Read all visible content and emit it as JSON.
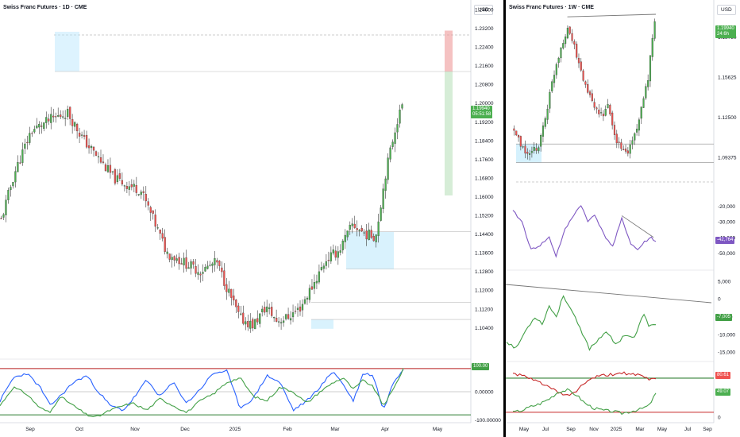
{
  "left_chart": {
    "title": "Swiss Franc Futures · 1D · CME",
    "currency": "USD",
    "price_ticks": [
      "1.24000",
      "1.23200",
      "1.22400",
      "1.21600",
      "1.20800",
      "1.20000",
      "1.19200",
      "1.18400",
      "1.17600",
      "1.16800",
      "1.16000",
      "1.15200",
      "1.14400",
      "1.13600",
      "1.12800",
      "1.12000",
      "1.11200",
      "1.10400"
    ],
    "last_price": "1.19940",
    "countdown": "05:51:58",
    "indicator_ticks": [
      "100.00000",
      "0.00000",
      "-100.00000"
    ],
    "indicator_tag": "100.00",
    "time_labels": [
      "Sep",
      "Oct",
      "Nov",
      "Dec",
      "2025",
      "Feb",
      "Mar",
      "Apr",
      "May"
    ]
  },
  "right_chart": {
    "title": "Swiss Franc Futures · 1W · CME",
    "currency": "USD",
    "price_ticks": [
      "1.18750",
      "1.15625",
      "1.12500",
      "1.09375"
    ],
    "last_price": "1.19940",
    "countdown": "24:6h",
    "osc1_ticks": [
      "-20,000",
      "-30,000",
      "-40,000",
      "-50,000"
    ],
    "osc1_tag": "-42,764",
    "osc2_ticks": [
      "5,000",
      "0",
      "-5,000",
      "-10,000",
      "-15,000"
    ],
    "osc2_tag": "-7,005",
    "osc3_tag_red": "80.61",
    "osc3_tag_green": "49.07",
    "osc3_tick": "0",
    "time_labels": [
      "May",
      "Jul",
      "Sep",
      "Nov",
      "2025",
      "Mar",
      "May",
      "Jul",
      "Sep"
    ]
  },
  "colors": {
    "up": "#4caf50",
    "down": "#ef5350",
    "blue": "#2962ff",
    "green_line": "#43a047",
    "red_line": "#b71c1c",
    "purple": "#7e57c2",
    "zone": "#b3e5fc",
    "grid": "#d1d4dc"
  },
  "chart_data": [
    {
      "type": "candlestick",
      "title": "Swiss Franc Futures · 1D · CME",
      "timeframe": "1D",
      "ylim": [
        1.098,
        1.24
      ],
      "x_labels": [
        "Sep",
        "Oct",
        "Nov",
        "Dec",
        "2025",
        "Feb",
        "Mar",
        "Apr",
        "May"
      ],
      "path_anchors": [
        [
          0,
          1.15
        ],
        [
          8,
          1.17
        ],
        [
          18,
          1.188
        ],
        [
          30,
          1.193
        ],
        [
          40,
          1.196
        ],
        [
          50,
          1.184
        ],
        [
          58,
          1.177
        ],
        [
          68,
          1.168
        ],
        [
          76,
          1.165
        ],
        [
          84,
          1.163
        ],
        [
          92,
          1.15
        ],
        [
          100,
          1.136
        ],
        [
          110,
          1.132
        ],
        [
          120,
          1.128
        ],
        [
          130,
          1.132
        ],
        [
          138,
          1.118
        ],
        [
          144,
          1.108
        ],
        [
          152,
          1.105
        ],
        [
          160,
          1.113
        ],
        [
          166,
          1.107
        ],
        [
          172,
          1.108
        ],
        [
          180,
          1.112
        ],
        [
          188,
          1.122
        ],
        [
          196,
          1.133
        ],
        [
          204,
          1.137
        ],
        [
          212,
          1.148
        ],
        [
          220,
          1.144
        ],
        [
          226,
          1.143
        ],
        [
          232,
          1.17
        ],
        [
          238,
          1.19
        ],
        [
          242,
          1.199
        ]
      ],
      "last_price": 1.1994,
      "zones": [
        {
          "kind": "blue",
          "price_top": 1.2305,
          "price_bottom": 1.2135
        },
        {
          "kind": "red",
          "price_top": 1.231,
          "price_bottom": 1.2135
        },
        {
          "kind": "green",
          "price_top": 1.2135,
          "price_bottom": 1.1605
        },
        {
          "kind": "blue",
          "price_top": 1.145,
          "price_bottom": 1.129
        }
      ],
      "indicator": {
        "ylim": [
          -120,
          120
        ],
        "levels": [
          100,
          0,
          -100
        ],
        "blue_anchors": [
          [
            0,
            -40
          ],
          [
            8,
            60
          ],
          [
            16,
            80
          ],
          [
            24,
            20
          ],
          [
            30,
            -60
          ],
          [
            36,
            -20
          ],
          [
            44,
            40
          ],
          [
            52,
            70
          ],
          [
            58,
            10
          ],
          [
            66,
            -60
          ],
          [
            74,
            -80
          ],
          [
            80,
            -30
          ],
          [
            88,
            50
          ],
          [
            96,
            -20
          ],
          [
            104,
            40
          ],
          [
            112,
            -50
          ],
          [
            120,
            10
          ],
          [
            128,
            80
          ],
          [
            136,
            90
          ],
          [
            144,
            -70
          ],
          [
            152,
            -30
          ],
          [
            160,
            70
          ],
          [
            168,
            40
          ],
          [
            176,
            -80
          ],
          [
            184,
            -40
          ],
          [
            192,
            20
          ],
          [
            200,
            90
          ],
          [
            206,
            30
          ],
          [
            212,
            -40
          ],
          [
            218,
            80
          ],
          [
            224,
            70
          ],
          [
            230,
            -80
          ],
          [
            236,
            40
          ],
          [
            242,
            100
          ]
        ],
        "green_anchors": [
          [
            0,
            -60
          ],
          [
            8,
            20
          ],
          [
            16,
            -10
          ],
          [
            24,
            -70
          ],
          [
            30,
            -90
          ],
          [
            36,
            -20
          ],
          [
            44,
            -60
          ],
          [
            52,
            -100
          ],
          [
            58,
            -110
          ],
          [
            66,
            -80
          ],
          [
            74,
            -60
          ],
          [
            80,
            -50
          ],
          [
            88,
            -80
          ],
          [
            96,
            -30
          ],
          [
            104,
            -60
          ],
          [
            112,
            -90
          ],
          [
            120,
            -40
          ],
          [
            128,
            -10
          ],
          [
            136,
            40
          ],
          [
            144,
            60
          ],
          [
            152,
            -20
          ],
          [
            160,
            -40
          ],
          [
            168,
            20
          ],
          [
            176,
            0
          ],
          [
            184,
            -50
          ],
          [
            192,
            0
          ],
          [
            200,
            40
          ],
          [
            206,
            60
          ],
          [
            212,
            10
          ],
          [
            218,
            50
          ],
          [
            224,
            20
          ],
          [
            230,
            -60
          ],
          [
            236,
            10
          ],
          [
            242,
            100
          ]
        ]
      }
    },
    {
      "type": "candlestick",
      "title": "Swiss Franc Futures · 1W · CME",
      "timeframe": "1W",
      "ylim": [
        1.08,
        1.205
      ],
      "x_labels": [
        "May",
        "Jul",
        "Sep",
        "Nov",
        "2025",
        "Mar",
        "May",
        "Jul",
        "Sep"
      ],
      "path_anchors": [
        [
          0,
          1.115
        ],
        [
          3,
          1.102
        ],
        [
          7,
          1.095
        ],
        [
          11,
          1.103
        ],
        [
          14,
          1.125
        ],
        [
          18,
          1.16
        ],
        [
          21,
          1.18
        ],
        [
          24,
          1.195
        ],
        [
          26,
          1.185
        ],
        [
          30,
          1.16
        ],
        [
          34,
          1.14
        ],
        [
          38,
          1.125
        ],
        [
          42,
          1.132
        ],
        [
          45,
          1.11
        ],
        [
          48,
          1.1
        ],
        [
          51,
          1.098
        ],
        [
          54,
          1.112
        ],
        [
          57,
          1.13
        ],
        [
          60,
          1.155
        ],
        [
          62,
          1.185
        ],
        [
          63,
          1.199
        ]
      ],
      "last_price": 1.1994,
      "levels": [
        1.104,
        1.0895
      ],
      "zones": [
        {
          "kind": "blue",
          "price_top": 1.104,
          "price_bottom": 1.0895
        }
      ],
      "resistance_line": [
        [
          24,
          1.203
        ],
        [
          63,
          1.205
        ]
      ],
      "osc1": {
        "ylim": [
          -56000,
          -14000
        ],
        "series_name": "",
        "anchors": [
          [
            0,
            -23000
          ],
          [
            4,
            -30000
          ],
          [
            8,
            -48000
          ],
          [
            12,
            -45000
          ],
          [
            16,
            -40000
          ],
          [
            19,
            -52000
          ],
          [
            23,
            -35000
          ],
          [
            27,
            -25000
          ],
          [
            30,
            -19000
          ],
          [
            33,
            -30000
          ],
          [
            36,
            -25000
          ],
          [
            40,
            -38000
          ],
          [
            44,
            -46000
          ],
          [
            48,
            -28000
          ],
          [
            52,
            -44000
          ],
          [
            55,
            -48000
          ],
          [
            58,
            -43000
          ],
          [
            61,
            -40000
          ],
          [
            63,
            -42764
          ]
        ],
        "trend_line": [
          [
            48,
            -26000
          ],
          [
            62,
            -40000
          ]
        ]
      },
      "osc2": {
        "ylim": [
          -17000,
          7000
        ],
        "series_name": "",
        "anchors": [
          [
            0,
            -12000
          ],
          [
            4,
            -14000
          ],
          [
            8,
            -9000
          ],
          [
            12,
            -5000
          ],
          [
            15,
            -7000
          ],
          [
            18,
            -2000
          ],
          [
            21,
            -5000
          ],
          [
            24,
            1000
          ],
          [
            28,
            -4000
          ],
          [
            32,
            -10000
          ],
          [
            35,
            -14000
          ],
          [
            38,
            -12000
          ],
          [
            42,
            -9000
          ],
          [
            46,
            -13000
          ],
          [
            50,
            -10000
          ],
          [
            54,
            -11000
          ],
          [
            58,
            -4000
          ],
          [
            60,
            -8000
          ],
          [
            63,
            -7005
          ]
        ],
        "trend_line": [
          [
            -2,
            2500
          ],
          [
            70,
            -2500
          ]
        ]
      },
      "osc3": {
        "ylim": [
          -5,
          110
        ],
        "levels": [
          80.61,
          49.07,
          10
        ],
        "red_anchors": [
          [
            0,
            90
          ],
          [
            4,
            86
          ],
          [
            8,
            78
          ],
          [
            12,
            72
          ],
          [
            16,
            62
          ],
          [
            20,
            50
          ],
          [
            24,
            44
          ],
          [
            28,
            54
          ],
          [
            32,
            72
          ],
          [
            36,
            82
          ],
          [
            40,
            86
          ],
          [
            44,
            88
          ],
          [
            48,
            92
          ],
          [
            52,
            88
          ],
          [
            56,
            86
          ],
          [
            60,
            78
          ],
          [
            63,
            80.61
          ]
        ],
        "green_anchors": [
          [
            0,
            10
          ],
          [
            4,
            14
          ],
          [
            8,
            22
          ],
          [
            12,
            28
          ],
          [
            16,
            38
          ],
          [
            20,
            52
          ],
          [
            24,
            56
          ],
          [
            28,
            46
          ],
          [
            32,
            28
          ],
          [
            36,
            18
          ],
          [
            40,
            14
          ],
          [
            44,
            12
          ],
          [
            48,
            8
          ],
          [
            52,
            12
          ],
          [
            56,
            16
          ],
          [
            60,
            24
          ],
          [
            63,
            49.07
          ]
        ]
      }
    }
  ]
}
